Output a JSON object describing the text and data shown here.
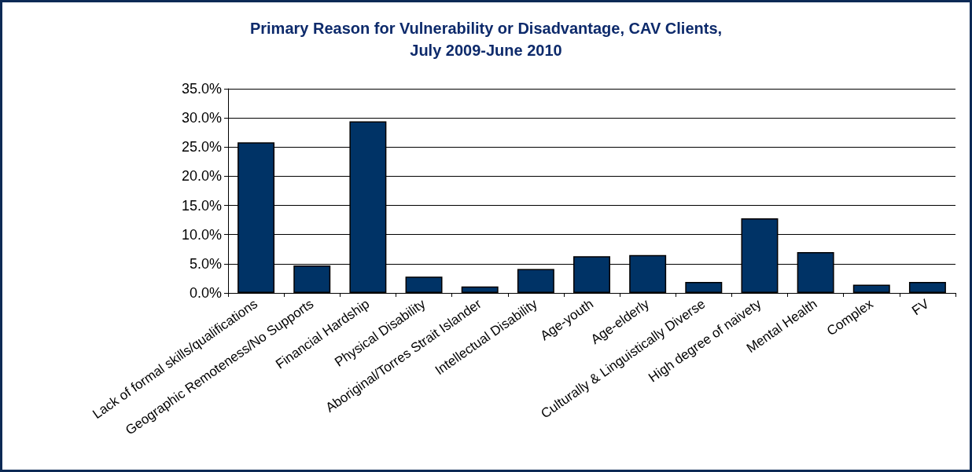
{
  "chart_data": {
    "type": "bar",
    "title": "Primary Reason for Vulnerability or Disadvantage, CAV Clients,\nJuly 2009-June 2010",
    "categories": [
      "Lack of formal skills/qualifications",
      "Geographic Remoteness/No Supports",
      "Financial Hardship",
      "Physical Disability",
      "Aboriginal/Torres Strait Islander",
      "Intellectual Disability",
      "Age-youth",
      "Age-elderly",
      "Culturally & Linguistically Diverse",
      "High degree of naivety",
      "Mental Health",
      "Complex",
      "FV"
    ],
    "values": [
      25.8,
      4.7,
      29.4,
      2.8,
      1.1,
      4.1,
      6.3,
      6.5,
      1.9,
      12.8,
      7.0,
      1.4,
      1.9
    ],
    "color": "#003366",
    "ylim": [
      0,
      35
    ],
    "yticks": [
      {
        "value": 0,
        "label": "0.0%"
      },
      {
        "value": 5,
        "label": "5.0%"
      },
      {
        "value": 10,
        "label": "10.0%"
      },
      {
        "value": 15,
        "label": "15.0%"
      },
      {
        "value": 20,
        "label": "20.0%"
      },
      {
        "value": 25,
        "label": "25.0%"
      },
      {
        "value": 30,
        "label": "30.0%"
      },
      {
        "value": 35,
        "label": "35.0%"
      }
    ],
    "grid": "y"
  }
}
